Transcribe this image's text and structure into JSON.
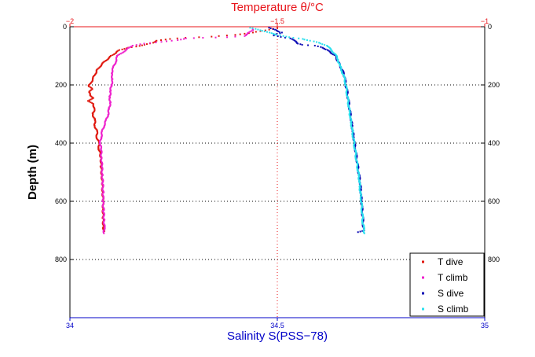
{
  "chart_data": {
    "type": "scatter",
    "title": "Temperature θ/°C",
    "ylabel": "Depth (m)",
    "xlabel": "Salinity S(PSS−78)",
    "y": {
      "lim": [
        0,
        1000
      ],
      "inverted": true,
      "ticks": [
        0,
        200,
        400,
        600,
        800
      ],
      "tick_labels": [
        "0",
        "200",
        "400",
        "600",
        "800"
      ]
    },
    "x_top": {
      "lim": [
        -2,
        -1
      ],
      "ticks": [
        -2,
        -1.5,
        -1
      ],
      "tick_labels": [
        "−2",
        "−1.5",
        "−1"
      ]
    },
    "x_bottom": {
      "lim": [
        34,
        35
      ],
      "ticks": [
        34,
        34.5,
        35
      ],
      "tick_labels": [
        "34",
        "34.5",
        "35"
      ]
    },
    "grid": {
      "horizontal": true,
      "vertical_at_top": [
        -1.5
      ]
    },
    "legend": "bottom-right",
    "colors": {
      "T_axis": "#e8141a",
      "S_axis": "#0000c8",
      "T dive": "#e0180e",
      "T climb": "#ee22cc",
      "S dive": "#0a0ab4",
      "S climb": "#2ae0ee"
    },
    "series": [
      {
        "name": "T dive",
        "axis": "temperature",
        "points": [
          [
            -1.5,
            5
          ],
          [
            -1.52,
            10
          ],
          [
            -1.54,
            15
          ],
          [
            -1.56,
            20
          ],
          [
            -1.6,
            28
          ],
          [
            -1.66,
            34
          ],
          [
            -1.72,
            38
          ],
          [
            -1.76,
            42
          ],
          [
            -1.79,
            48
          ],
          [
            -1.8,
            55
          ],
          [
            -1.82,
            62
          ],
          [
            -1.84,
            68
          ],
          [
            -1.86,
            72
          ],
          [
            -1.88,
            80
          ],
          [
            -1.89,
            90
          ],
          [
            -1.9,
            100
          ],
          [
            -1.91,
            112
          ],
          [
            -1.92,
            125
          ],
          [
            -1.93,
            140
          ],
          [
            -1.935,
            150
          ],
          [
            -1.94,
            165
          ],
          [
            -1.945,
            180
          ],
          [
            -1.95,
            195
          ],
          [
            -1.955,
            205
          ],
          [
            -1.945,
            215
          ],
          [
            -1.955,
            225
          ],
          [
            -1.95,
            235
          ],
          [
            -1.945,
            245
          ],
          [
            -1.955,
            255
          ],
          [
            -1.945,
            265
          ],
          [
            -1.94,
            280
          ],
          [
            -1.945,
            300
          ],
          [
            -1.94,
            320
          ],
          [
            -1.94,
            340
          ],
          [
            -1.935,
            360
          ],
          [
            -1.935,
            380
          ],
          [
            -1.93,
            400
          ],
          [
            -1.93,
            420
          ],
          [
            -1.925,
            450
          ],
          [
            -1.925,
            480
          ],
          [
            -1.923,
            510
          ],
          [
            -1.922,
            540
          ],
          [
            -1.921,
            570
          ],
          [
            -1.92,
            600
          ],
          [
            -1.92,
            630
          ],
          [
            -1.92,
            660
          ],
          [
            -1.919,
            690
          ],
          [
            -1.918,
            705
          ]
        ]
      },
      {
        "name": "T climb",
        "axis": "temperature",
        "points": [
          [
            -1.918,
            710
          ],
          [
            -1.917,
            690
          ],
          [
            -1.918,
            660
          ],
          [
            -1.919,
            630
          ],
          [
            -1.92,
            600
          ],
          [
            -1.92,
            570
          ],
          [
            -1.921,
            540
          ],
          [
            -1.922,
            510
          ],
          [
            -1.923,
            480
          ],
          [
            -1.924,
            450
          ],
          [
            -1.925,
            420
          ],
          [
            -1.927,
            400
          ],
          [
            -1.925,
            380
          ],
          [
            -1.922,
            360
          ],
          [
            -1.918,
            340
          ],
          [
            -1.912,
            320
          ],
          [
            -1.908,
            300
          ],
          [
            -1.905,
            280
          ],
          [
            -1.903,
            260
          ],
          [
            -1.904,
            240
          ],
          [
            -1.902,
            220
          ],
          [
            -1.9,
            200
          ],
          [
            -1.897,
            180
          ],
          [
            -1.9,
            160
          ],
          [
            -1.895,
            140
          ],
          [
            -1.89,
            120
          ],
          [
            -1.885,
            100
          ],
          [
            -1.87,
            85
          ],
          [
            -1.86,
            75
          ],
          [
            -1.85,
            65
          ],
          [
            -1.82,
            58
          ],
          [
            -1.78,
            52
          ],
          [
            -1.74,
            46
          ],
          [
            -1.72,
            40
          ],
          [
            -1.68,
            38
          ],
          [
            -1.62,
            36
          ],
          [
            -1.58,
            32
          ],
          [
            -1.57,
            22
          ],
          [
            -1.56,
            12
          ],
          [
            -1.56,
            5
          ]
        ]
      },
      {
        "name": "S dive",
        "axis": "salinity",
        "points": [
          [
            34.48,
            3
          ],
          [
            34.49,
            8
          ],
          [
            34.5,
            14
          ],
          [
            34.51,
            20
          ],
          [
            34.5,
            25
          ],
          [
            34.49,
            30
          ],
          [
            34.51,
            35
          ],
          [
            34.53,
            40
          ],
          [
            34.54,
            45
          ],
          [
            34.545,
            52
          ],
          [
            34.55,
            58
          ],
          [
            34.56,
            62
          ],
          [
            34.59,
            65
          ],
          [
            34.61,
            72
          ],
          [
            34.62,
            80
          ],
          [
            34.63,
            90
          ],
          [
            34.64,
            100
          ],
          [
            34.645,
            115
          ],
          [
            34.65,
            130
          ],
          [
            34.655,
            145
          ],
          [
            34.66,
            160
          ],
          [
            34.663,
            180
          ],
          [
            34.665,
            200
          ],
          [
            34.668,
            220
          ],
          [
            34.67,
            240
          ],
          [
            34.672,
            260
          ],
          [
            34.674,
            280
          ],
          [
            34.676,
            300
          ],
          [
            34.678,
            320
          ],
          [
            34.68,
            340
          ],
          [
            34.682,
            360
          ],
          [
            34.684,
            380
          ],
          [
            34.686,
            400
          ],
          [
            34.688,
            420
          ],
          [
            34.69,
            440
          ],
          [
            34.692,
            460
          ],
          [
            34.694,
            480
          ],
          [
            34.696,
            500
          ],
          [
            34.698,
            520
          ],
          [
            34.7,
            540
          ],
          [
            34.701,
            560
          ],
          [
            34.702,
            580
          ],
          [
            34.703,
            600
          ],
          [
            34.704,
            620
          ],
          [
            34.705,
            640
          ],
          [
            34.706,
            660
          ],
          [
            34.707,
            680
          ],
          [
            34.708,
            700
          ],
          [
            34.69,
            708
          ]
        ]
      },
      {
        "name": "S climb",
        "axis": "salinity",
        "points": [
          [
            34.71,
            710
          ],
          [
            34.708,
            690
          ],
          [
            34.706,
            670
          ],
          [
            34.705,
            650
          ],
          [
            34.704,
            630
          ],
          [
            34.703,
            610
          ],
          [
            34.702,
            590
          ],
          [
            34.7,
            570
          ],
          [
            34.699,
            550
          ],
          [
            34.698,
            530
          ],
          [
            34.696,
            510
          ],
          [
            34.694,
            490
          ],
          [
            34.692,
            470
          ],
          [
            34.69,
            450
          ],
          [
            34.688,
            430
          ],
          [
            34.686,
            410
          ],
          [
            34.684,
            390
          ],
          [
            34.682,
            370
          ],
          [
            34.68,
            350
          ],
          [
            34.678,
            330
          ],
          [
            34.676,
            310
          ],
          [
            34.674,
            290
          ],
          [
            34.672,
            270
          ],
          [
            34.67,
            250
          ],
          [
            34.668,
            230
          ],
          [
            34.666,
            210
          ],
          [
            34.664,
            190
          ],
          [
            34.66,
            170
          ],
          [
            34.655,
            150
          ],
          [
            34.65,
            130
          ],
          [
            34.645,
            110
          ],
          [
            34.64,
            95
          ],
          [
            34.63,
            80
          ],
          [
            34.62,
            65
          ],
          [
            34.6,
            55
          ],
          [
            34.58,
            48
          ],
          [
            34.56,
            42
          ],
          [
            34.54,
            38
          ],
          [
            34.52,
            34
          ],
          [
            34.5,
            28
          ],
          [
            34.48,
            20
          ],
          [
            34.46,
            12
          ],
          [
            34.44,
            5
          ],
          [
            34.43,
            2
          ]
        ]
      }
    ]
  }
}
